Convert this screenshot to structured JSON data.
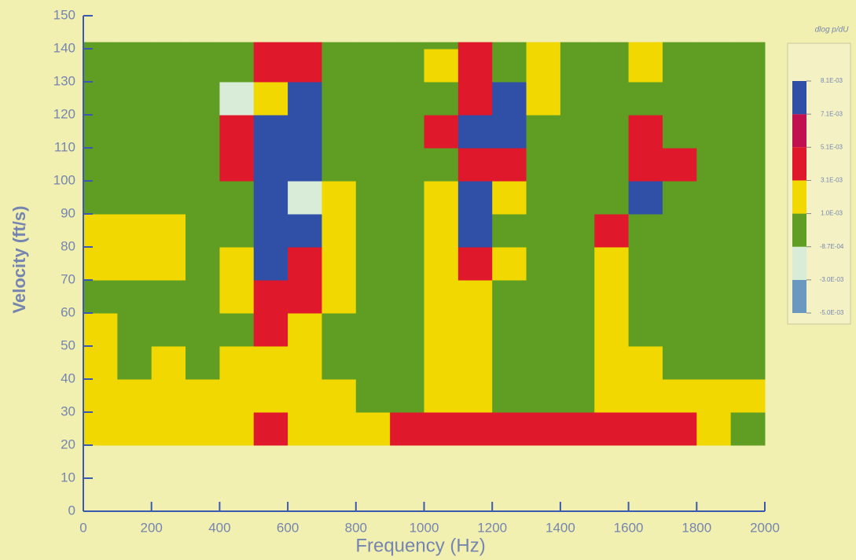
{
  "chart_data": {
    "type": "heatmap",
    "xlabel": "Frequency (Hz)",
    "ylabel": "Velocity (ft/s)",
    "xlim": [
      0,
      2000
    ],
    "ylim": [
      0,
      150
    ],
    "xticks": [
      0,
      200,
      400,
      600,
      800,
      1000,
      1200,
      1400,
      1600,
      1800,
      2000
    ],
    "yticks": [
      0,
      10,
      20,
      30,
      40,
      50,
      60,
      70,
      80,
      90,
      100,
      110,
      120,
      130,
      140,
      150
    ],
    "x_edges": [
      0,
      100,
      200,
      300,
      400,
      500,
      600,
      700,
      800,
      900,
      1000,
      1100,
      1200,
      1300,
      1400,
      1500,
      1600,
      1700,
      1800,
      1900,
      2000
    ],
    "y_edges": [
      20,
      30,
      40,
      50,
      60,
      70,
      80,
      90,
      100,
      110,
      120,
      130,
      140,
      142
    ],
    "z": [
      [
        0.002,
        0.002,
        0.002,
        0.002,
        0.002,
        0.004,
        0.002,
        0.002,
        0.002,
        0.004,
        0.004,
        0.004,
        0.004,
        0.004,
        0.004,
        0.004,
        0.004,
        0.004,
        0.002,
        0
      ],
      [
        0.002,
        0.002,
        0.002,
        0.002,
        0.002,
        0.002,
        0.002,
        0.002,
        0,
        0,
        0.002,
        0.002,
        0,
        0,
        0,
        0.002,
        0.002,
        0.002,
        0.002,
        0.002
      ],
      [
        0.002,
        0,
        0.002,
        0,
        0.002,
        0.002,
        0.002,
        0,
        0,
        0,
        0.002,
        0.002,
        0,
        0,
        0,
        0.002,
        0.002,
        0,
        0,
        0
      ],
      [
        0.002,
        0,
        0,
        0,
        0,
        0.004,
        0.002,
        0,
        0,
        0,
        0.002,
        0.002,
        0,
        0,
        0,
        0.002,
        0,
        0,
        0,
        0
      ],
      [
        0,
        0,
        0,
        0,
        0.002,
        0.004,
        0.004,
        0.002,
        0,
        0,
        0.002,
        0.002,
        0,
        0,
        0,
        0.002,
        0,
        0,
        0,
        0
      ],
      [
        0.002,
        0.002,
        0.002,
        0,
        0.002,
        0.0075,
        0.004,
        0.002,
        0,
        0,
        0.002,
        0.004,
        0.002,
        0,
        0,
        0.002,
        0,
        0,
        0,
        0
      ],
      [
        0.002,
        0.002,
        0.002,
        0,
        0,
        0.0075,
        0.0075,
        0.002,
        0,
        0,
        0.002,
        0.0075,
        0,
        0,
        0,
        0.004,
        0,
        0,
        0,
        0
      ],
      [
        0,
        0,
        0,
        0,
        0,
        0.0075,
        -0.002,
        0.002,
        0,
        0,
        0.002,
        0.0075,
        0.002,
        0,
        0,
        0,
        0.0075,
        0,
        0,
        0
      ],
      [
        0,
        0,
        0,
        0,
        0.004,
        0.0075,
        0.0075,
        0,
        0,
        0,
        0,
        0.004,
        0.004,
        0,
        0,
        0,
        0.004,
        0.004,
        0,
        0
      ],
      [
        0,
        0,
        0,
        0,
        0.004,
        0.0075,
        0.0075,
        0,
        0,
        0,
        0.004,
        0.0075,
        0.0075,
        0,
        0,
        0,
        0.004,
        0,
        0,
        0
      ],
      [
        0,
        0,
        0,
        0,
        -0.002,
        0.002,
        0.0075,
        0,
        0,
        0,
        0,
        0.004,
        0.0075,
        0.002,
        0,
        0,
        0,
        0,
        0,
        0
      ],
      [
        0,
        0,
        0,
        0,
        0,
        0.004,
        0.004,
        0,
        0,
        0,
        0.002,
        0.004,
        0,
        0.002,
        0,
        0,
        0.002,
        0,
        0,
        0
      ],
      [
        0,
        0,
        0,
        0,
        0,
        0.004,
        0.004,
        0,
        0,
        0,
        0,
        0.004,
        0,
        0.002,
        0,
        0,
        0.002,
        0,
        0,
        0
      ]
    ],
    "colorbar": {
      "title": "dlog p/dU",
      "ticks": [
        {
          "value": -0.005,
          "label": "-5.0E-03"
        },
        {
          "value": -0.003,
          "label": "-3.0E-03"
        },
        {
          "value": -0.00087,
          "label": "-8.7E-04"
        },
        {
          "value": 0.001,
          "label": "1.0E-03"
        },
        {
          "value": 0.0031,
          "label": "3.1E-03"
        },
        {
          "value": 0.0051,
          "label": "5.1E-03"
        },
        {
          "value": 0.0071,
          "label": "7.1E-03"
        },
        {
          "value": 0.0081,
          "label": "8.1E-03"
        }
      ],
      "colors": [
        "#6a98c0",
        "#d8ecd8",
        "#5f9e22",
        "#f0d800",
        "#e0182c",
        "#c01050",
        "#3050a8"
      ]
    }
  }
}
